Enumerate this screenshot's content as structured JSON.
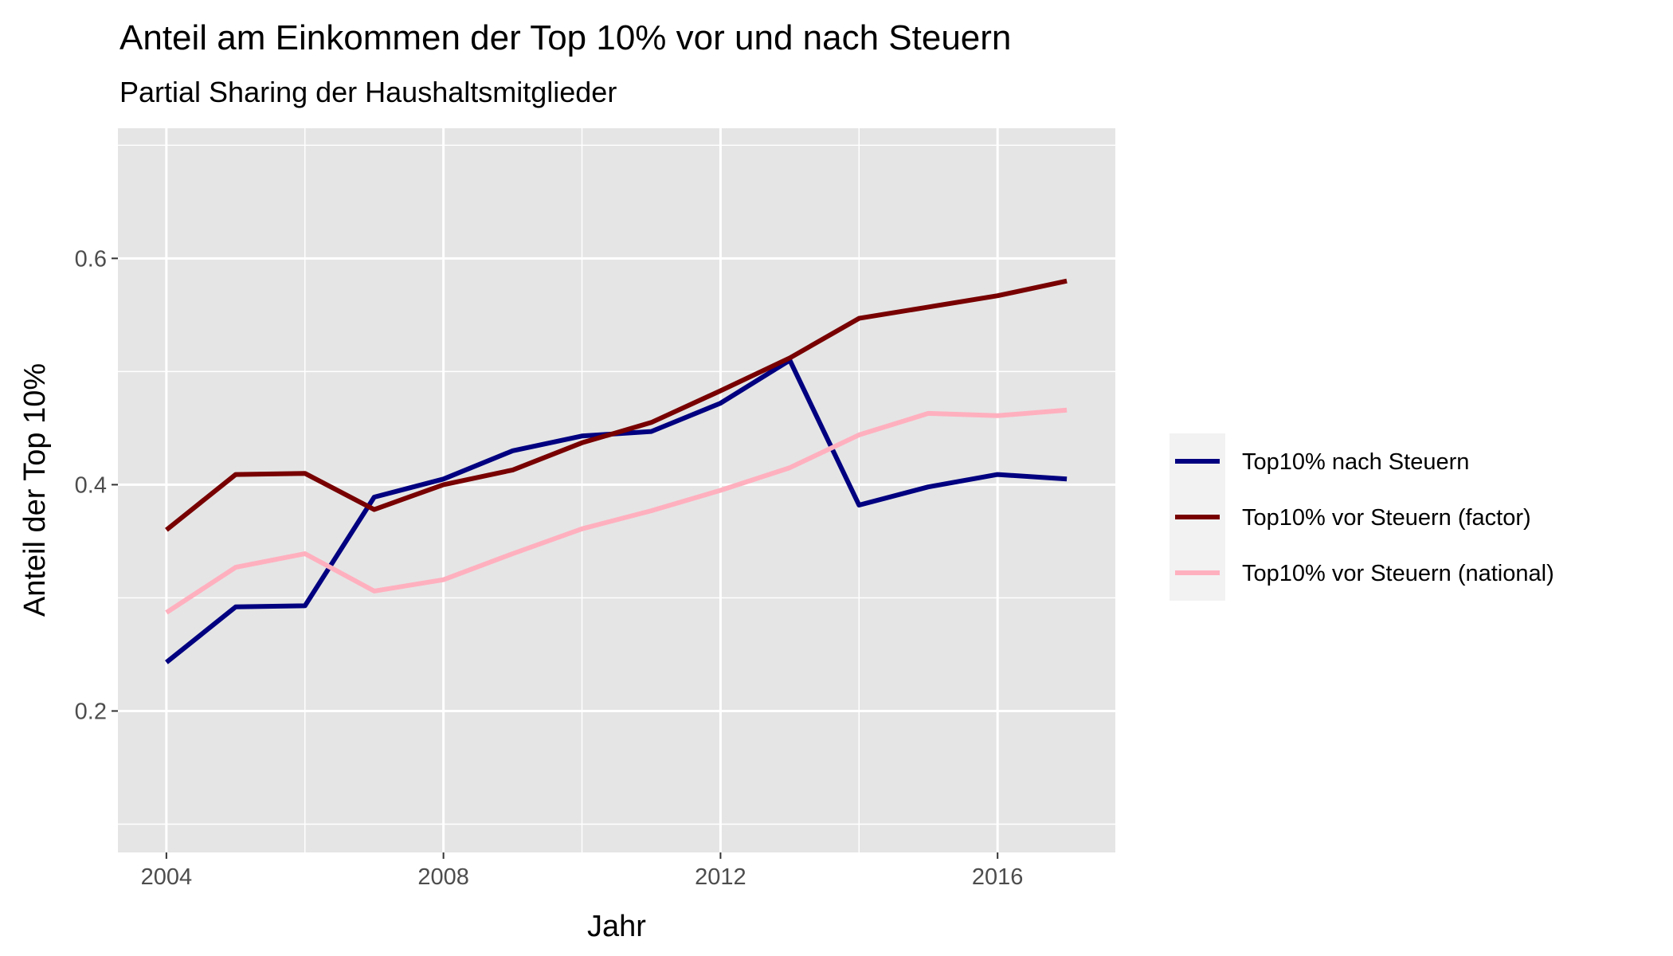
{
  "chart_data": {
    "type": "line",
    "title": "Anteil am Einkommen der Top 10% vor und nach Steuern",
    "subtitle": "Partial Sharing der Haushaltsmitglieder",
    "xlabel": "Jahr",
    "ylabel": "Anteil der Top 10%",
    "xlim": [
      2003.3,
      2017.7
    ],
    "ylim": [
      0.075,
      0.715
    ],
    "x_ticks": [
      2004,
      2008,
      2012,
      2016
    ],
    "x_tick_labels": [
      "2004",
      "2008",
      "2012",
      "2016"
    ],
    "y_ticks": [
      0.2,
      0.4,
      0.6
    ],
    "y_tick_labels": [
      "0.2",
      "0.4",
      "0.6"
    ],
    "grid": true,
    "legend_position": "right",
    "x": [
      2004,
      2005,
      2006,
      2007,
      2008,
      2009,
      2010,
      2011,
      2012,
      2013,
      2014,
      2015,
      2016,
      2017
    ],
    "series": [
      {
        "name": "Top10% nach Steuern",
        "color": "#000080",
        "values": [
          0.243,
          0.292,
          0.293,
          0.389,
          0.405,
          0.43,
          0.443,
          0.447,
          0.472,
          0.51,
          0.382,
          0.398,
          0.409,
          0.405
        ]
      },
      {
        "name": "Top10% vor Steuern (factor)",
        "color": "#780000",
        "values": [
          0.36,
          0.409,
          0.41,
          0.378,
          0.4,
          0.413,
          0.437,
          0.455,
          0.483,
          0.512,
          0.547,
          0.557,
          0.567,
          0.58
        ]
      },
      {
        "name": "Top10% vor Steuern (national)",
        "color": "#ffb0bf",
        "values": [
          0.287,
          0.327,
          0.339,
          0.306,
          0.316,
          0.339,
          0.361,
          0.377,
          0.395,
          0.415,
          0.444,
          0.463,
          0.461,
          0.466
        ]
      }
    ]
  },
  "colors": {
    "panel_background": "#e5e5e5",
    "grid_major": "#ffffff",
    "tick_text": "#4d4d4d"
  }
}
